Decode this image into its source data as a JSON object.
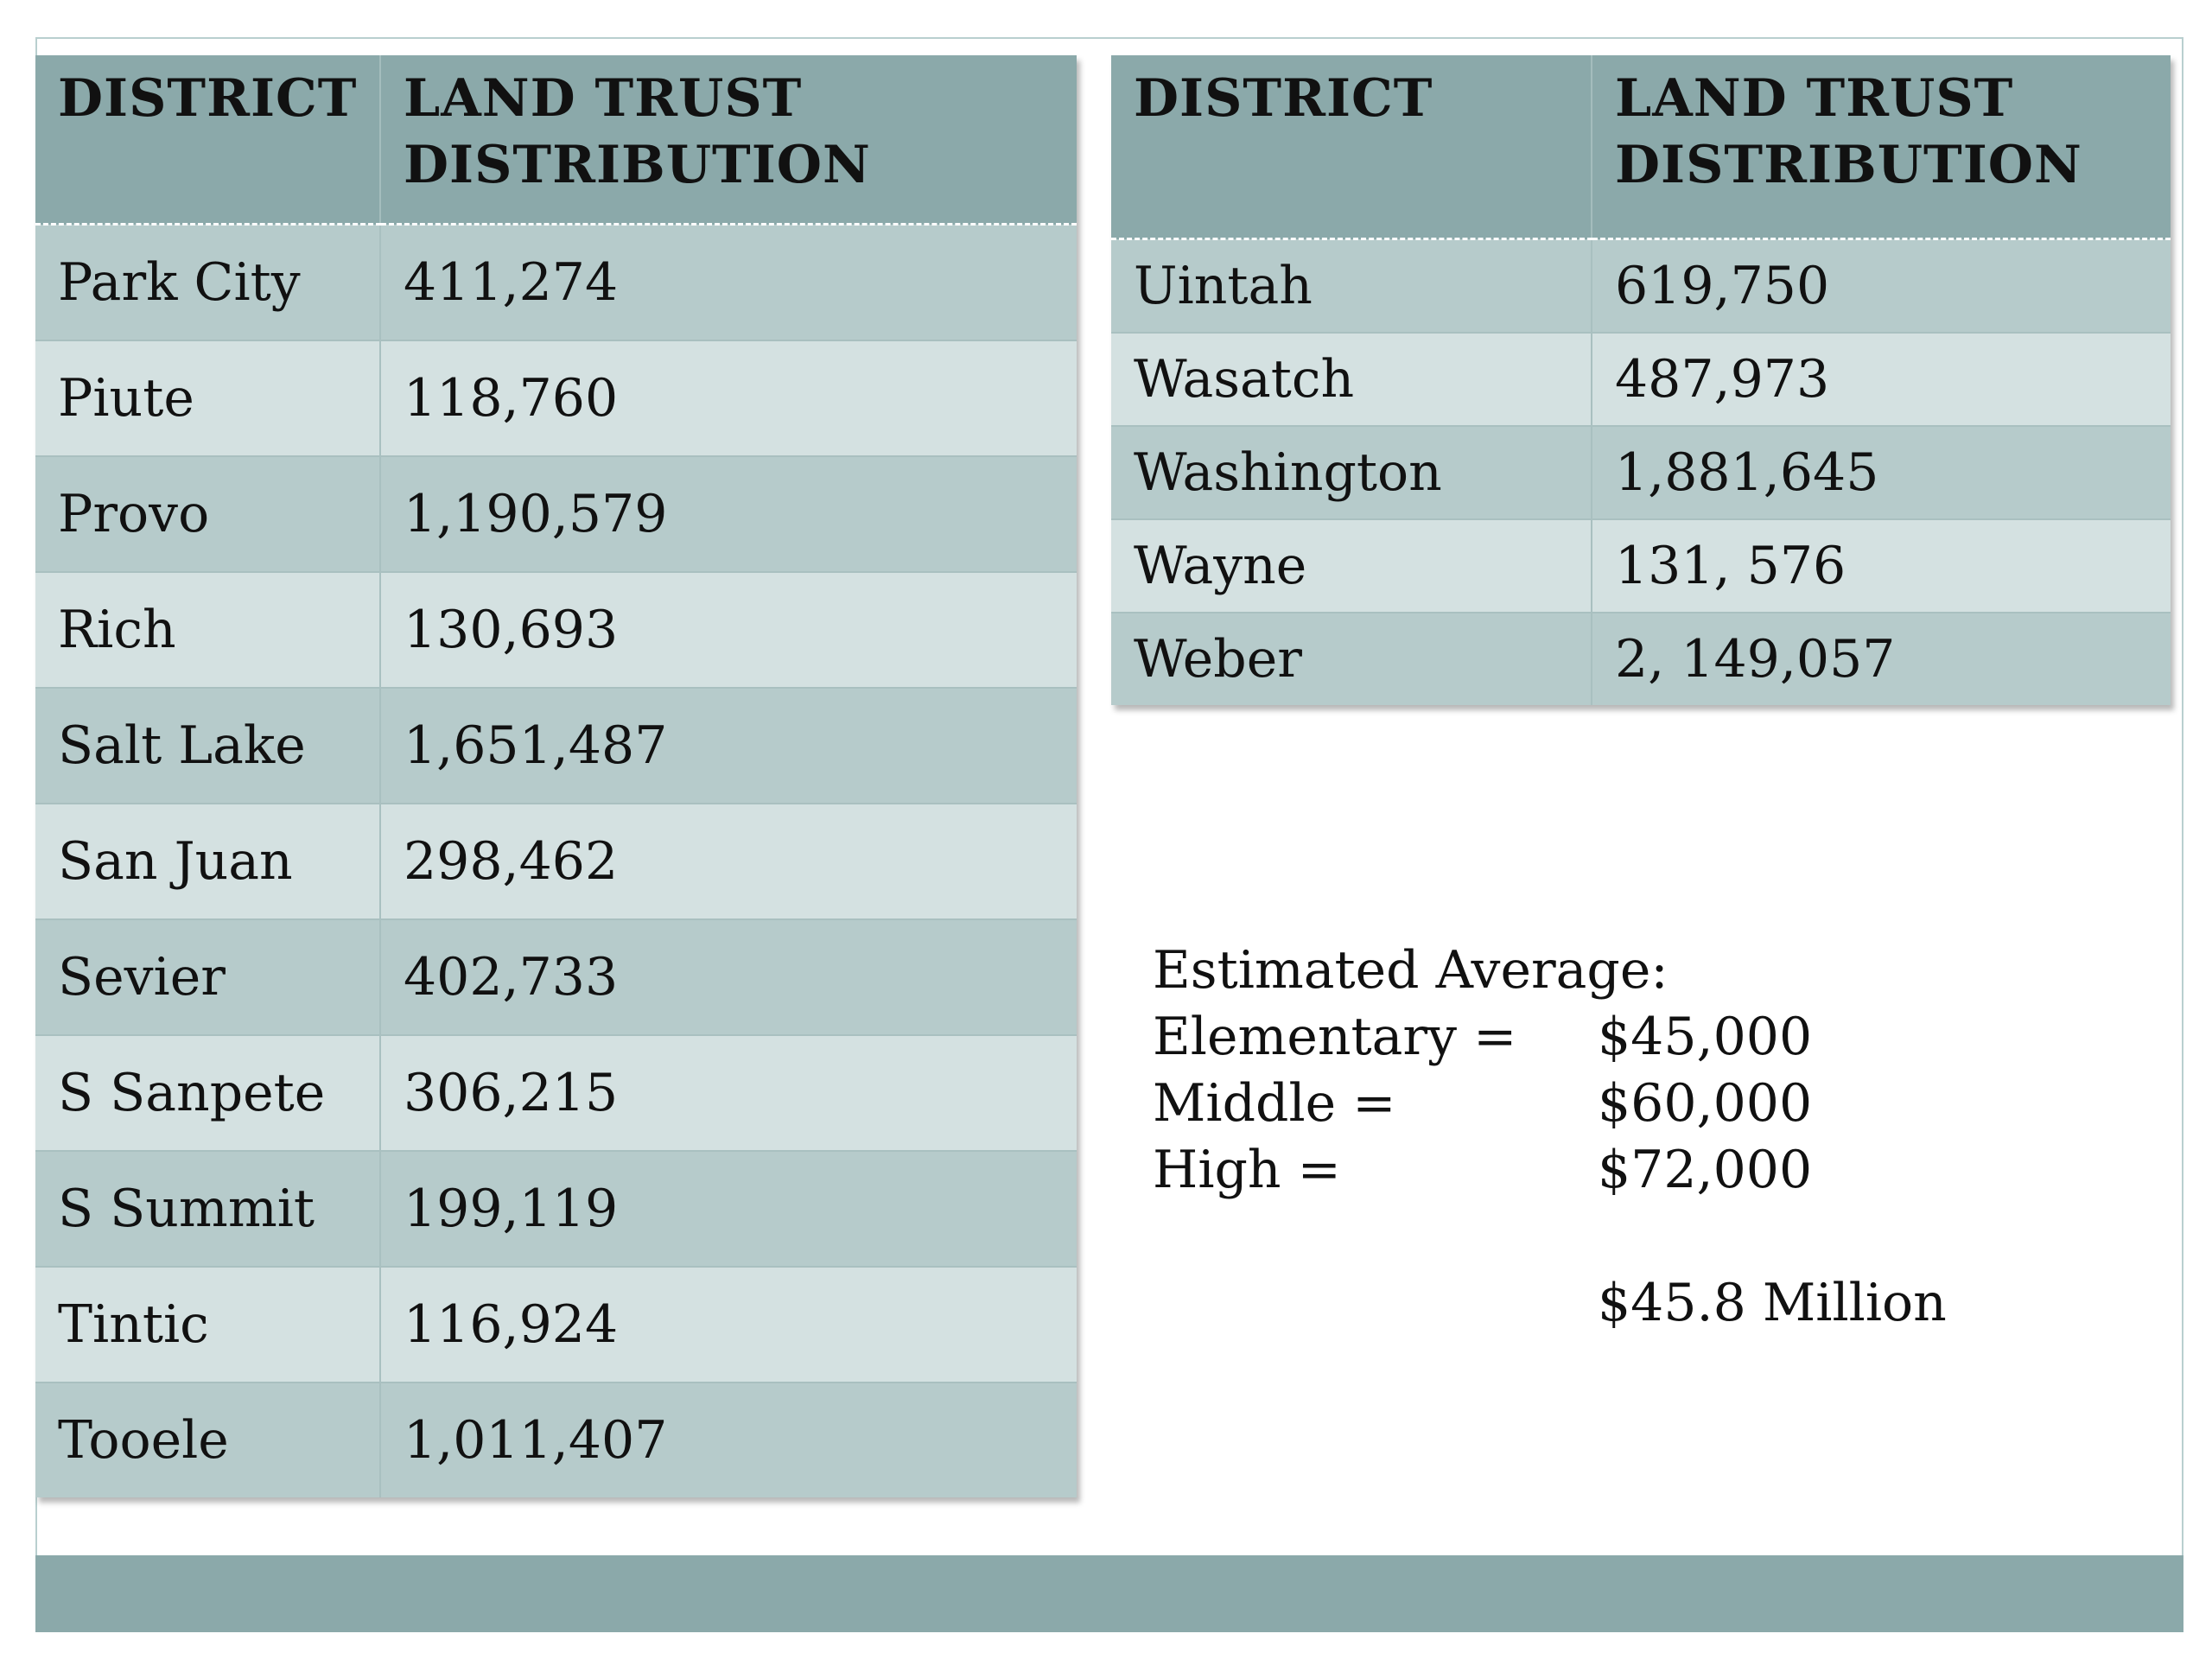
{
  "left_table": {
    "headers": {
      "district": "DISTRICT",
      "distribution": "LAND TRUST DISTRIBUTION"
    },
    "rows": [
      {
        "district": "Park City",
        "value": "411,274"
      },
      {
        "district": "Piute",
        "value": "118,760"
      },
      {
        "district": "Provo",
        "value": "1,190,579"
      },
      {
        "district": "Rich",
        "value": "130,693"
      },
      {
        "district": "Salt Lake",
        "value": "1,651,487"
      },
      {
        "district": "San Juan",
        "value": "298,462"
      },
      {
        "district": "Sevier",
        "value": "402,733"
      },
      {
        "district": "S Sanpete",
        "value": "306,215"
      },
      {
        "district": "S Summit",
        "value": "199,119"
      },
      {
        "district": "Tintic",
        "value": "116,924"
      },
      {
        "district": "Tooele",
        "value": "1,011,407"
      }
    ]
  },
  "right_table": {
    "headers": {
      "district": "DISTRICT",
      "distribution": "LAND TRUST DISTRIBUTION"
    },
    "rows": [
      {
        "district": "Uintah",
        "value": "619,750"
      },
      {
        "district": "Wasatch",
        "value": "487,973"
      },
      {
        "district": "Washington",
        "value": "1,881,645"
      },
      {
        "district": "Wayne",
        "value": "131, 576"
      },
      {
        "district": "Weber",
        "value": "2, 149,057"
      }
    ]
  },
  "summary": {
    "heading": "Estimated Average:",
    "lines": [
      {
        "label": "Elementary =",
        "value": "$45,000"
      },
      {
        "label": "Middle =",
        "value": "$60,000"
      },
      {
        "label": "High =",
        "value": "$72,000"
      }
    ],
    "total": "$45.8 Million"
  },
  "colors": {
    "header": "#8ba9aa",
    "row_dark": "#b6cbcb",
    "row_light": "#d4e1e1",
    "footer_bar": "#8ba9aa"
  }
}
